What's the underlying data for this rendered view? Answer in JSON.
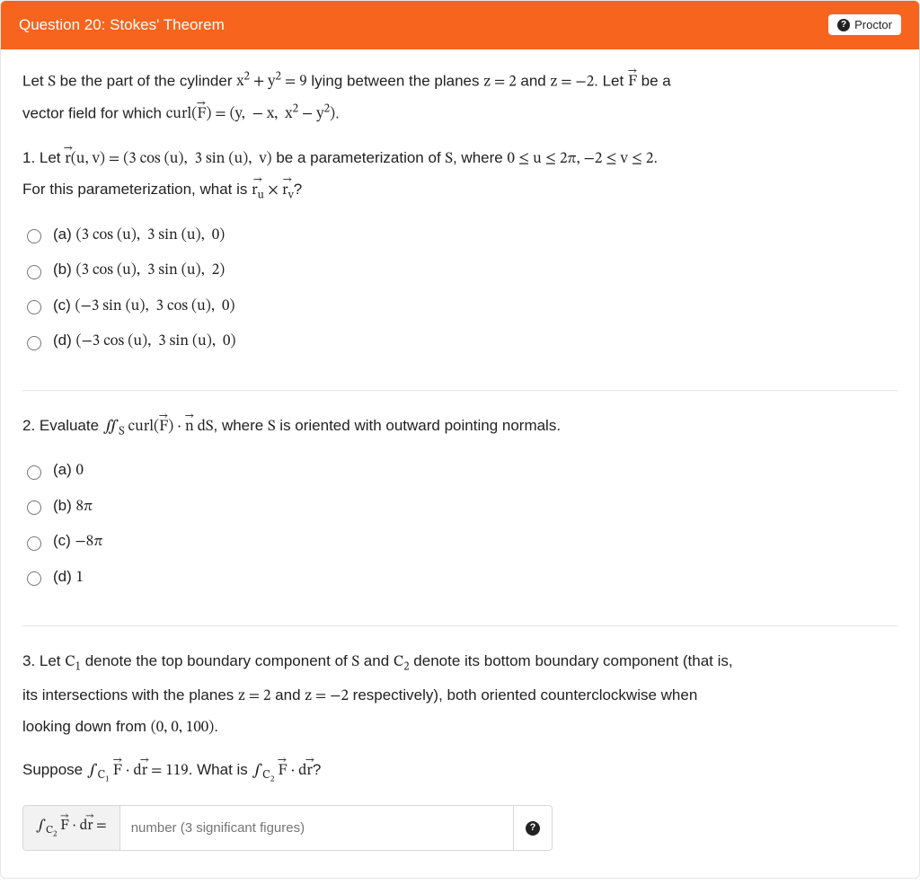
{
  "colors": {
    "header_bg": "#f6641d",
    "header_text": "#ffffff",
    "body_text": "#222222",
    "border": "#e3e3e3",
    "input_border": "#d8d8d8",
    "input_label_bg": "#f2f2f2",
    "placeholder": "#777777"
  },
  "header": {
    "title": "Question 20: Stokes' Theorem",
    "proctor_label": "Proctor"
  },
  "intro": {
    "line1_html": "Let <span class='mi'>S</span> be the part of the cylinder <span class='mi'>x<sup>2</sup> + y<sup>2</sup> = 9</span> lying between the planes <span class='mi'>z = 2</span> and <span class='mi'>z = −2</span>. Let <span class='mi'><span class='vec'>F</span></span> be a",
    "line2_html": "vector field for which <span class='mi'>curl(<span class='vec'>F</span>) = (y,&nbsp; − x,&nbsp; x<sup>2</sup> − y<sup>2</sup>)</span>."
  },
  "q1": {
    "prompt1_html": "1. Let <span class='mi'><span class='vec'>r</span>(u, v) = (3 cos (u),&nbsp; 3 sin (u),&nbsp; v)</span> be a parameterization of <span class='mi'>S</span>, where <span class='mi'>0 ≤ u ≤ 2π, −2 ≤ v ≤ 2</span>.",
    "prompt2_html": "For this parameterization, what is <span class='mi'><span class='vec'>r<sub>u</sub></span> × <span class='vec'>r<sub>v</sub></span></span>?",
    "options": [
      "(a) <span class='mi'>(3 cos (u),&nbsp; 3 sin (u),&nbsp; 0)</span>",
      "(b) <span class='mi'>(3 cos (u),&nbsp; 3 sin (u),&nbsp; 2)</span>",
      "(c) <span class='mi'>(−3 sin (u),&nbsp; 3 cos (u),&nbsp; 0)</span>",
      "(d) <span class='mi'>(−3 cos (u),&nbsp; 3 sin (u),&nbsp; 0)</span>"
    ]
  },
  "q2": {
    "prompt_html": "2. Evaluate <span class='mi'>∬<sub>S</sub> curl(<span class='vec'>F</span>) · <span class='vec'>n</span> dS</span>, where <span class='mi'>S</span> is oriented with outward pointing normals.",
    "options": [
      "(a) <span class='mi'>0</span>",
      "(b) <span class='mi'>8π</span>",
      "(c) <span class='mi'>−8π</span>",
      "(d) <span class='mi'>1</span>"
    ]
  },
  "q3": {
    "line1_html": "3. Let <span class='mi'>C<sub>1</sub></span> denote the top boundary component of <span class='mi'>S</span> and <span class='mi'>C<sub>2</sub></span> denote its bottom boundary component (that is,",
    "line2_html": "its intersections with the planes <span class='mi'>z = 2</span> and <span class='mi'>z = −2</span> respectively), both oriented counterclockwise when",
    "line3_html": "looking down from <span class='mi'>(0, 0, 100)</span>.",
    "suppose_html": "Suppose <span class='mi'>∫<sub>C<sub>1</sub></sub> <span class='vec'>F</span> · d<span class='vec'>r</span> = 119</span>. What is <span class='mi'>∫<sub>C<sub>2</sub></sub> <span class='vec'>F</span> · d<span class='vec'>r</span></span>?",
    "input_label_html": "<span class='mi'>∫<sub>C<sub>2</sub></sub> <span class='vec'>F</span> · d<span class='vec'>r</span> =</span>",
    "placeholder": "number (3 significant figures)"
  }
}
